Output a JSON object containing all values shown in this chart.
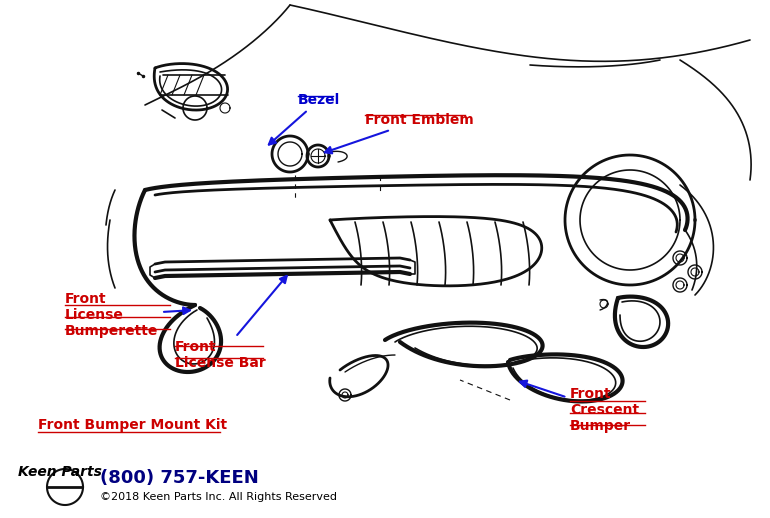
{
  "bg_color": "#ffffff",
  "fig_width": 7.7,
  "fig_height": 5.18,
  "dpi": 100,
  "line_color": "#111111",
  "arrow_color": "#1515dd",
  "bezel_label": "Bezel",
  "bezel_color": "#0000cc",
  "emblem_label": "Front Emblem",
  "emblem_color": "#cc0000",
  "bumperette_label": "Front\nLicense\nBumperette",
  "bumperette_color": "#cc0000",
  "bar_label": "Front\nLicense Bar",
  "bar_color": "#cc0000",
  "mount_label": "Front Bumper Mount Kit",
  "mount_color": "#cc0000",
  "crescent_label": "Front\nCrescent\nBumper",
  "crescent_color": "#cc0000",
  "footer_phone": "(800) 757-KEEN",
  "footer_copy": "©2018 Keen Parts Inc. All Rights Reserved",
  "phone_color": "#000080",
  "copy_color": "#000000",
  "label_fontsize": 10,
  "footer_phone_fontsize": 13,
  "footer_copy_fontsize": 8
}
